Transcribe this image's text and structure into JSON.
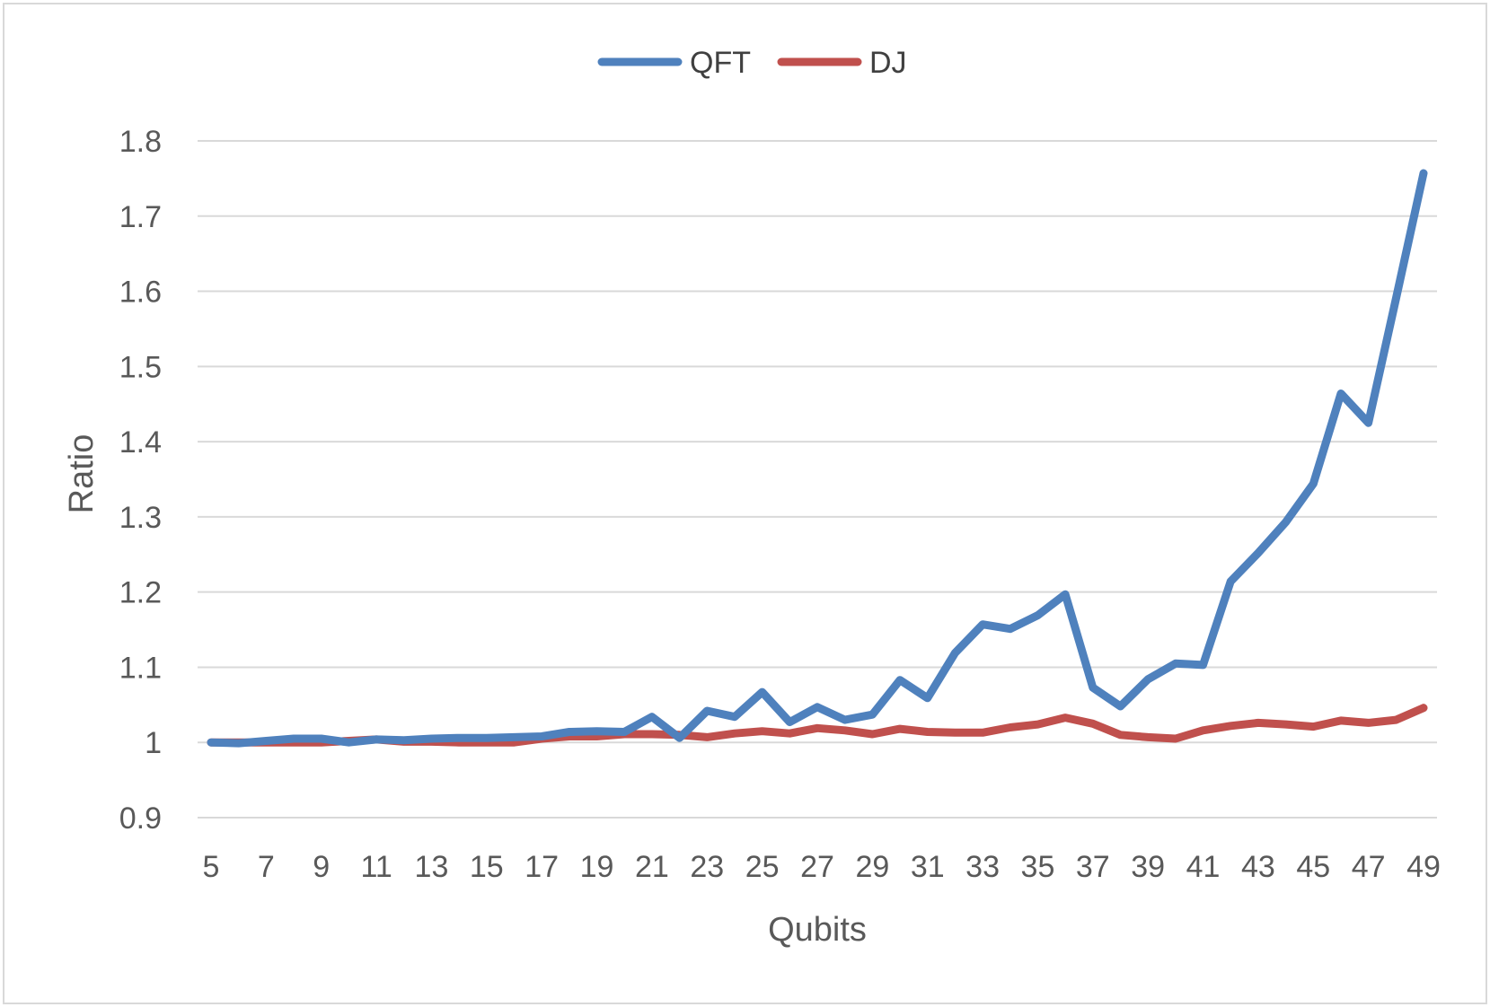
{
  "chart_data": {
    "type": "line",
    "title": "",
    "xlabel": "Qubits",
    "ylabel": "Ratio",
    "x": [
      5,
      6,
      7,
      8,
      9,
      10,
      11,
      12,
      13,
      14,
      15,
      16,
      17,
      18,
      19,
      20,
      21,
      22,
      23,
      24,
      25,
      26,
      27,
      28,
      29,
      30,
      31,
      32,
      33,
      34,
      35,
      36,
      37,
      38,
      39,
      40,
      41,
      42,
      43,
      44,
      45,
      46,
      47,
      48,
      49
    ],
    "x_tick_labels": [
      "5",
      "7",
      "9",
      "11",
      "13",
      "15",
      "17",
      "19",
      "21",
      "23",
      "25",
      "27",
      "29",
      "31",
      "33",
      "35",
      "37",
      "39",
      "41",
      "43",
      "45",
      "47",
      "49"
    ],
    "y_tick_labels": [
      "0.9",
      "1",
      "1.1",
      "1.2",
      "1.3",
      "1.4",
      "1.5",
      "1.6",
      "1.7",
      "1.8"
    ],
    "ylim": [
      0.9,
      1.8
    ],
    "grid": true,
    "legend_position": "top",
    "series": [
      {
        "name": "QFT",
        "color": "#4f81bd",
        "values": [
          1.0,
          0.999,
          1.002,
          1.005,
          1.005,
          1.0,
          1.004,
          1.003,
          1.005,
          1.006,
          1.006,
          1.007,
          1.008,
          1.014,
          1.015,
          1.014,
          1.034,
          1.006,
          1.042,
          1.034,
          1.067,
          1.027,
          1.047,
          1.03,
          1.037,
          1.083,
          1.059,
          1.119,
          1.157,
          1.151,
          1.169,
          1.197,
          1.073,
          1.048,
          1.084,
          1.105,
          1.103,
          1.214,
          1.252,
          1.293,
          1.344,
          1.464,
          1.425,
          1.59,
          1.757
        ]
      },
      {
        "name": "DJ",
        "color": "#c0504d",
        "values": [
          1.0,
          1.0,
          1.0,
          1.0,
          1.0,
          1.002,
          1.004,
          1.001,
          1.001,
          1.0,
          1.0,
          1.0,
          1.005,
          1.008,
          1.008,
          1.011,
          1.011,
          1.01,
          1.007,
          1.012,
          1.015,
          1.012,
          1.019,
          1.016,
          1.011,
          1.018,
          1.014,
          1.013,
          1.013,
          1.02,
          1.024,
          1.033,
          1.025,
          1.01,
          1.007,
          1.005,
          1.016,
          1.022,
          1.026,
          1.024,
          1.021,
          1.029,
          1.026,
          1.03,
          1.046
        ]
      }
    ]
  }
}
